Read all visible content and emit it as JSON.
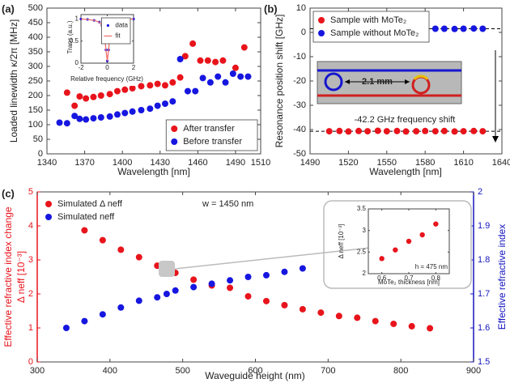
{
  "chart_data": [
    {
      "type": "scatter",
      "panel_label": "(a)",
      "xlabel": "Wavelength [nm]",
      "ylabel": "Loaded linewidth κ/2π [MHz]",
      "xlim": [
        1340,
        1510
      ],
      "xticks": [
        1340,
        1370,
        1400,
        1430,
        1460,
        1490,
        1510
      ],
      "ylim": [
        0,
        500
      ],
      "yticks": [
        0,
        50,
        100,
        150,
        200,
        250,
        300,
        350,
        400,
        450,
        500
      ],
      "legend": "lower right",
      "legend_frame": true,
      "series": [
        {
          "name": "After transfer",
          "color": "#e8141c",
          "x": [
            1356,
            1362,
            1366,
            1371,
            1377,
            1383,
            1390,
            1396,
            1402,
            1408,
            1415,
            1422,
            1428,
            1434,
            1440,
            1446,
            1450,
            1456,
            1462,
            1468,
            1474,
            1480,
            1490,
            1497
          ],
          "values": [
            210,
            165,
            197,
            190,
            195,
            200,
            205,
            215,
            220,
            225,
            232,
            235,
            240,
            235,
            245,
            262,
            335,
            378,
            320,
            320,
            315,
            320,
            295,
            365
          ]
        },
        {
          "name": "Before transfer",
          "color": "#1616e0",
          "x": [
            1350,
            1356,
            1362,
            1366,
            1371,
            1377,
            1383,
            1390,
            1396,
            1402,
            1408,
            1415,
            1422,
            1428,
            1434,
            1440,
            1446,
            1452,
            1458,
            1464,
            1470,
            1476,
            1482,
            1488,
            1494,
            1500
          ],
          "values": [
            107,
            105,
            130,
            120,
            118,
            122,
            125,
            128,
            135,
            140,
            145,
            150,
            155,
            165,
            172,
            180,
            325,
            215,
            215,
            260,
            245,
            265,
            245,
            275,
            265,
            265
          ]
        }
      ]
    },
    {
      "type": "line",
      "xlabel": "Relative frequency (GHz)",
      "ylabel": "Trans (a.u.)",
      "xlim": [
        -2,
        2
      ],
      "xticks": [
        -2,
        0,
        2
      ],
      "ylim": [
        0,
        1.1
      ],
      "yticks": [
        0,
        0.5,
        1
      ],
      "legend": "upper right",
      "legend_frame": true,
      "x": [
        -2,
        -1.5,
        -1,
        -0.6,
        -0.4,
        -0.2,
        -0.1,
        0,
        0.1,
        0.2,
        0.4,
        0.6,
        1,
        1.5,
        2
      ],
      "series": [
        {
          "name": "data",
          "color": "#1616e0",
          "style": "marker",
          "values": [
            1,
            0.99,
            0.97,
            0.93,
            0.85,
            0.6,
            0.3,
            0.05,
            0.3,
            0.6,
            0.85,
            0.93,
            0.97,
            0.99,
            1
          ]
        },
        {
          "name": "fit",
          "color": "#f07070",
          "style": "line",
          "values": [
            1,
            0.99,
            0.97,
            0.93,
            0.85,
            0.6,
            0.3,
            0.05,
            0.3,
            0.6,
            0.85,
            0.93,
            0.97,
            0.99,
            1
          ]
        }
      ]
    },
    {
      "type": "scatter",
      "panel_label": "(b)",
      "xlabel": "Wavelength [nm]",
      "ylabel": "Resonance position shift [GHz]",
      "xlim": [
        1490,
        1640
      ],
      "xticks": [
        1490,
        1520,
        1550,
        1580,
        1610,
        1640
      ],
      "ylim": [
        -50,
        10
      ],
      "yticks": [
        -50,
        -40,
        -30,
        -20,
        -10,
        0,
        10
      ],
      "legend": "upper left",
      "legend_frame": true,
      "hlines": [
        1.5,
        -40.7
      ],
      "annotations": [
        "2.1 mm",
        "-42.2 GHz frequency shift"
      ],
      "series": [
        {
          "name": "Sample with MoTe₂",
          "color": "#e8141c",
          "x": [
            1505,
            1513,
            1520,
            1528,
            1535,
            1543,
            1550,
            1558,
            1565,
            1573,
            1580,
            1588,
            1595,
            1603,
            1610,
            1618,
            1625
          ],
          "values": [
            -40.7,
            -40.6,
            -40.8,
            -40.6,
            -40.7,
            -40.5,
            -40.7,
            -40.6,
            -40.8,
            -40.7,
            -40.6,
            -40.7,
            -40.6,
            -40.8,
            -40.7,
            -40.6,
            -40.7
          ]
        },
        {
          "name": "Sample without MoTe₂",
          "color": "#1616e0",
          "x": [
            1505,
            1513,
            1520,
            1528,
            1535,
            1543,
            1550,
            1558,
            1565,
            1573,
            1580,
            1588,
            1595,
            1603,
            1610,
            1618,
            1625
          ],
          "values": [
            1.5,
            1.6,
            1.5,
            1.4,
            1.5,
            1.6,
            1.5,
            1.5,
            1.4,
            1.5,
            1.6,
            1.5,
            1.5,
            1.4,
            1.5,
            1.6,
            1.5
          ]
        }
      ]
    },
    {
      "type": "scatter",
      "panel_label": "(c)",
      "xlabel": "Waveguide height (nm)",
      "ylabel": "Effective refractive index change",
      "ylabel2": "Δ neff  [10⁻³]",
      "y2label": "Effective refractive index",
      "xlim": [
        300,
        900
      ],
      "xticks": [
        300,
        400,
        500,
        600,
        700,
        800,
        900
      ],
      "ylim": [
        0,
        5
      ],
      "yticks": [
        0,
        1,
        2,
        3,
        4,
        5
      ],
      "y2lim": [
        1.5,
        2
      ],
      "y2ticks": [
        1.5,
        1.6,
        1.7,
        1.8,
        1.9,
        2
      ],
      "ycolor": "#e8141c",
      "y2color": "#1616c0",
      "legend": "upper left",
      "legend_frame": false,
      "annotations": [
        "w = 1450 nm"
      ],
      "series": [
        {
          "name": "Simulated Δ neff",
          "color": "#e8141c",
          "x": [
            365,
            390,
            415,
            440,
            465,
            478,
            490,
            515,
            540,
            565,
            590,
            615,
            640,
            665,
            690,
            715,
            740,
            765,
            790,
            815,
            840
          ],
          "values": [
            3.87,
            3.58,
            3.3,
            3.08,
            2.83,
            2.73,
            2.62,
            2.42,
            2.25,
            2.18,
            1.93,
            1.79,
            1.67,
            1.55,
            1.45,
            1.35,
            1.3,
            1.2,
            1.12,
            1.05,
            0.99
          ]
        },
        {
          "name": "Simulated neff",
          "color": "#1616e0",
          "axis": "y2",
          "x": [
            340,
            365,
            390,
            415,
            440,
            465,
            478,
            490,
            515,
            540,
            565,
            590,
            615,
            640,
            665
          ],
          "values": [
            1.6,
            1.62,
            1.64,
            1.66,
            1.68,
            1.69,
            1.7,
            1.71,
            1.72,
            1.73,
            1.74,
            1.75,
            1.755,
            1.765,
            1.775
          ]
        }
      ]
    },
    {
      "type": "scatter",
      "xlabel": "MoTe₂ thickness [nm]",
      "ylabel": "Δ neff [10⁻³]",
      "xlim": [
        0.55,
        0.85
      ],
      "xticks": [
        0.6,
        0.7,
        0.8
      ],
      "ylim": [
        2,
        3.5
      ],
      "yticks": [
        2,
        2.5,
        3,
        3.5
      ],
      "annotations": [
        "h = 475 nm"
      ],
      "series": [
        {
          "color": "#e8141c",
          "x": [
            0.6,
            0.65,
            0.7,
            0.75,
            0.8
          ],
          "values": [
            2.35,
            2.55,
            2.75,
            2.9,
            3.15
          ]
        }
      ]
    }
  ]
}
